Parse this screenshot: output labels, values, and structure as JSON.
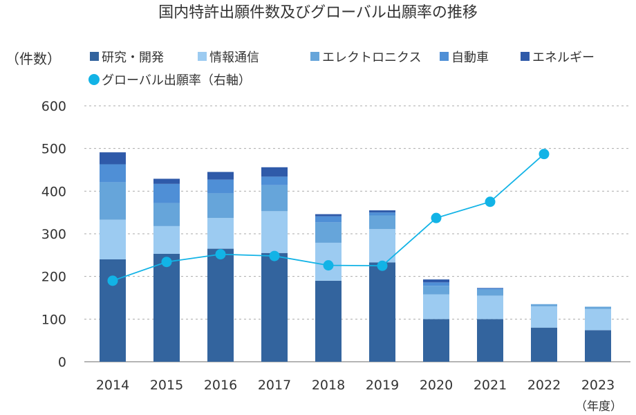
{
  "chart_data": {
    "type": "bar",
    "title": "国内特許出願件数及びグローバル出願率の推移",
    "ylabel": "（件数）",
    "xunit": "（年度）",
    "categories": [
      "2014",
      "2015",
      "2016",
      "2017",
      "2018",
      "2019",
      "2020",
      "2021",
      "2022",
      "2023"
    ],
    "ylim": [
      0,
      600
    ],
    "yticks": [
      0,
      100,
      200,
      300,
      400,
      500,
      600
    ],
    "grid": true,
    "legend_position": "top",
    "series": [
      {
        "name": "研究・開発",
        "color": "#33649e",
        "values": [
          240,
          253,
          265,
          255,
          190,
          233,
          100,
          100,
          80,
          74
        ]
      },
      {
        "name": "情報通信",
        "color": "#9ccbf1",
        "values": [
          93,
          65,
          72,
          98,
          89,
          78,
          58,
          55,
          50,
          50
        ]
      },
      {
        "name": "エレクトロニクス",
        "color": "#66a5da",
        "values": [
          88,
          54,
          58,
          61,
          48,
          32,
          20,
          14,
          5,
          5
        ]
      },
      {
        "name": "自動車",
        "color": "#4f8fd6",
        "values": [
          42,
          45,
          32,
          20,
          14,
          7,
          8,
          3,
          0,
          0
        ]
      },
      {
        "name": "エネルギー",
        "color": "#2f5aa9",
        "values": [
          28,
          12,
          18,
          22,
          5,
          5,
          7,
          1,
          0,
          0
        ]
      }
    ],
    "line_series": {
      "name": "グローバル出願率（右軸）",
      "color": "#12b3e6",
      "axis": "right",
      "values": [
        190,
        234,
        252,
        248,
        226,
        225,
        337,
        375,
        487,
        null
      ]
    }
  }
}
